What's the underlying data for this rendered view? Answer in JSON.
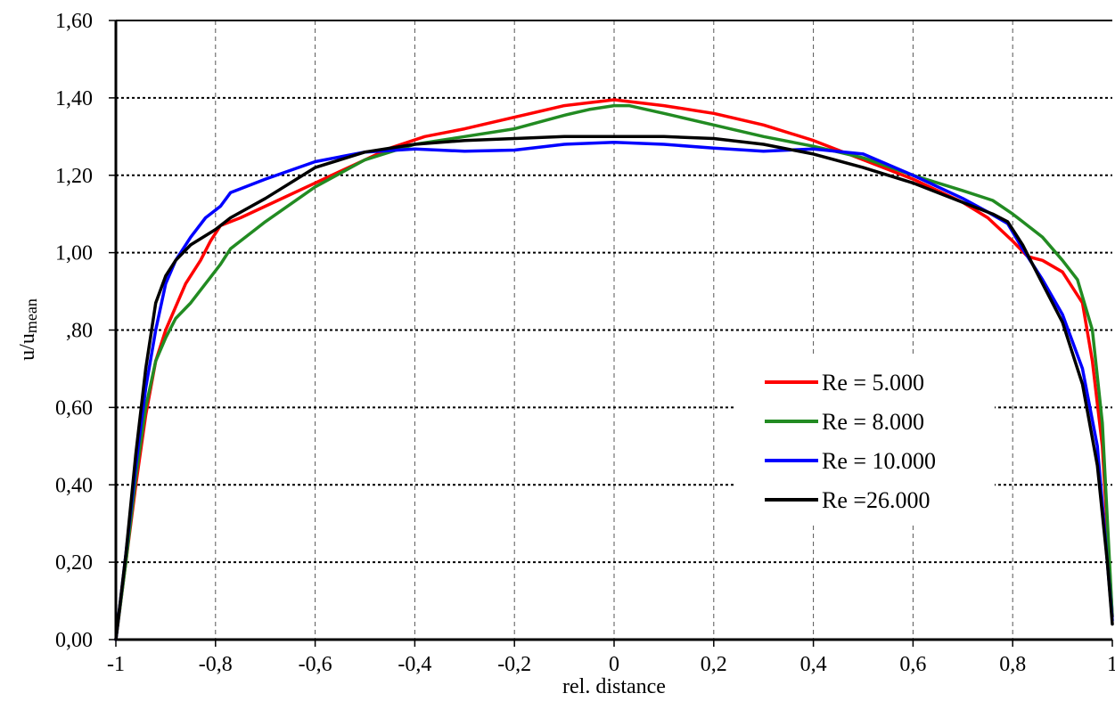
{
  "chart_data": {
    "type": "line",
    "title": "",
    "xlabel": "rel. distance",
    "ylabel_main": "u/u",
    "ylabel_sub": "mean",
    "xlim": [
      -1,
      1
    ],
    "ylim": [
      0,
      1.6
    ],
    "grid": true,
    "legend_position": "center-right",
    "x_ticks": [
      {
        "value": -1,
        "label": "-1"
      },
      {
        "value": -0.8,
        "label": "-0,8"
      },
      {
        "value": -0.6,
        "label": "-0,6"
      },
      {
        "value": -0.4,
        "label": "-0,4"
      },
      {
        "value": -0.2,
        "label": "-0,2"
      },
      {
        "value": 0,
        "label": "0"
      },
      {
        "value": 0.2,
        "label": "0,2"
      },
      {
        "value": 0.4,
        "label": "0,4"
      },
      {
        "value": 0.6,
        "label": "0,6"
      },
      {
        "value": 0.8,
        "label": "0,8"
      },
      {
        "value": 1,
        "label": "1"
      }
    ],
    "y_ticks": [
      {
        "value": 0,
        "label": "0,00"
      },
      {
        "value": 0.2,
        "label": "0,20"
      },
      {
        "value": 0.4,
        "label": "0,40"
      },
      {
        "value": 0.6,
        "label": "0,60"
      },
      {
        "value": 0.8,
        "label": ",80"
      },
      {
        "value": 1.0,
        "label": "1,00"
      },
      {
        "value": 1.2,
        "label": "1,20"
      },
      {
        "value": 1.4,
        "label": "1,40"
      },
      {
        "value": 1.6,
        "label": "1,60"
      }
    ],
    "series": [
      {
        "name": "Re = 5.000",
        "color": "#ff0000",
        "points": [
          [
            -1,
            0.0
          ],
          [
            -0.98,
            0.2
          ],
          [
            -0.96,
            0.4
          ],
          [
            -0.94,
            0.58
          ],
          [
            -0.92,
            0.72
          ],
          [
            -0.9,
            0.8
          ],
          [
            -0.88,
            0.86
          ],
          [
            -0.86,
            0.92
          ],
          [
            -0.83,
            0.98
          ],
          [
            -0.81,
            1.03
          ],
          [
            -0.79,
            1.07
          ],
          [
            -0.75,
            1.09
          ],
          [
            -0.7,
            1.12
          ],
          [
            -0.6,
            1.18
          ],
          [
            -0.5,
            1.24
          ],
          [
            -0.45,
            1.27
          ],
          [
            -0.38,
            1.3
          ],
          [
            -0.3,
            1.32
          ],
          [
            -0.2,
            1.35
          ],
          [
            -0.1,
            1.38
          ],
          [
            0,
            1.395
          ],
          [
            0.1,
            1.38
          ],
          [
            0.2,
            1.36
          ],
          [
            0.3,
            1.33
          ],
          [
            0.4,
            1.29
          ],
          [
            0.5,
            1.24
          ],
          [
            0.6,
            1.19
          ],
          [
            0.7,
            1.13
          ],
          [
            0.75,
            1.09
          ],
          [
            0.8,
            1.03
          ],
          [
            0.83,
            0.99
          ],
          [
            0.86,
            0.98
          ],
          [
            0.9,
            0.95
          ],
          [
            0.94,
            0.87
          ],
          [
            0.96,
            0.72
          ],
          [
            0.98,
            0.5
          ],
          [
            1.0,
            0.06
          ]
        ]
      },
      {
        "name": "Re = 8.000",
        "color": "#228b22",
        "points": [
          [
            -1,
            0.0
          ],
          [
            -0.98,
            0.2
          ],
          [
            -0.96,
            0.42
          ],
          [
            -0.94,
            0.6
          ],
          [
            -0.92,
            0.72
          ],
          [
            -0.9,
            0.78
          ],
          [
            -0.88,
            0.83
          ],
          [
            -0.85,
            0.87
          ],
          [
            -0.82,
            0.92
          ],
          [
            -0.79,
            0.97
          ],
          [
            -0.77,
            1.01
          ],
          [
            -0.7,
            1.08
          ],
          [
            -0.6,
            1.17
          ],
          [
            -0.5,
            1.24
          ],
          [
            -0.4,
            1.28
          ],
          [
            -0.3,
            1.3
          ],
          [
            -0.2,
            1.32
          ],
          [
            -0.1,
            1.355
          ],
          [
            -0.05,
            1.37
          ],
          [
            0,
            1.38
          ],
          [
            0.03,
            1.38
          ],
          [
            0.1,
            1.36
          ],
          [
            0.2,
            1.33
          ],
          [
            0.3,
            1.3
          ],
          [
            0.4,
            1.275
          ],
          [
            0.5,
            1.245
          ],
          [
            0.6,
            1.2
          ],
          [
            0.7,
            1.16
          ],
          [
            0.76,
            1.135
          ],
          [
            0.8,
            1.1
          ],
          [
            0.83,
            1.07
          ],
          [
            0.86,
            1.04
          ],
          [
            0.9,
            0.98
          ],
          [
            0.93,
            0.93
          ],
          [
            0.96,
            0.8
          ],
          [
            0.98,
            0.56
          ],
          [
            1.0,
            0.06
          ]
        ]
      },
      {
        "name": "Re = 10.000",
        "color": "#0000ff",
        "points": [
          [
            -1,
            0.0
          ],
          [
            -0.98,
            0.22
          ],
          [
            -0.96,
            0.45
          ],
          [
            -0.94,
            0.65
          ],
          [
            -0.92,
            0.8
          ],
          [
            -0.9,
            0.92
          ],
          [
            -0.88,
            0.98
          ],
          [
            -0.85,
            1.04
          ],
          [
            -0.82,
            1.09
          ],
          [
            -0.79,
            1.12
          ],
          [
            -0.77,
            1.155
          ],
          [
            -0.7,
            1.19
          ],
          [
            -0.6,
            1.235
          ],
          [
            -0.5,
            1.26
          ],
          [
            -0.4,
            1.268
          ],
          [
            -0.3,
            1.262
          ],
          [
            -0.2,
            1.265
          ],
          [
            -0.1,
            1.28
          ],
          [
            0,
            1.285
          ],
          [
            0.1,
            1.28
          ],
          [
            0.2,
            1.27
          ],
          [
            0.3,
            1.262
          ],
          [
            0.4,
            1.268
          ],
          [
            0.5,
            1.255
          ],
          [
            0.6,
            1.2
          ],
          [
            0.7,
            1.14
          ],
          [
            0.75,
            1.105
          ],
          [
            0.79,
            1.075
          ],
          [
            0.82,
            1.01
          ],
          [
            0.86,
            0.93
          ],
          [
            0.9,
            0.84
          ],
          [
            0.94,
            0.7
          ],
          [
            0.97,
            0.5
          ],
          [
            0.99,
            0.2
          ],
          [
            1.0,
            0.05
          ]
        ]
      },
      {
        "name": "Re =26.000",
        "color": "#000000",
        "points": [
          [
            -1,
            0.0
          ],
          [
            -0.98,
            0.22
          ],
          [
            -0.96,
            0.48
          ],
          [
            -0.94,
            0.7
          ],
          [
            -0.92,
            0.87
          ],
          [
            -0.9,
            0.94
          ],
          [
            -0.88,
            0.98
          ],
          [
            -0.85,
            1.02
          ],
          [
            -0.8,
            1.06
          ],
          [
            -0.77,
            1.09
          ],
          [
            -0.7,
            1.14
          ],
          [
            -0.6,
            1.22
          ],
          [
            -0.5,
            1.26
          ],
          [
            -0.4,
            1.28
          ],
          [
            -0.3,
            1.29
          ],
          [
            -0.2,
            1.295
          ],
          [
            -0.1,
            1.3
          ],
          [
            0,
            1.3
          ],
          [
            0.1,
            1.3
          ],
          [
            0.2,
            1.295
          ],
          [
            0.3,
            1.28
          ],
          [
            0.4,
            1.255
          ],
          [
            0.5,
            1.22
          ],
          [
            0.6,
            1.18
          ],
          [
            0.7,
            1.13
          ],
          [
            0.76,
            1.1
          ],
          [
            0.79,
            1.08
          ],
          [
            0.82,
            1.02
          ],
          [
            0.86,
            0.92
          ],
          [
            0.9,
            0.82
          ],
          [
            0.94,
            0.66
          ],
          [
            0.97,
            0.45
          ],
          [
            0.99,
            0.2
          ],
          [
            1.0,
            0.04
          ]
        ]
      }
    ]
  }
}
